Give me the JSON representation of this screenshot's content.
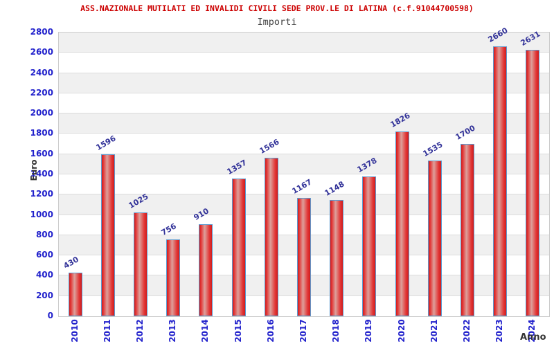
{
  "chart_data": {
    "type": "bar",
    "title": "ASS.NAZIONALE MUTILATI ED INVALIDI CIVILI SEDE PROV.LE DI LATINA (c.f.91044700598)",
    "subtitle": "Importi",
    "xlabel": "Anno",
    "ylabel": "Euro",
    "categories": [
      "2010",
      "2011",
      "2012",
      "2013",
      "2014",
      "2015",
      "2016",
      "2017",
      "2018",
      "2019",
      "2020",
      "2021",
      "2022",
      "2023",
      "2024"
    ],
    "values": [
      430,
      1596,
      1025,
      756,
      910,
      1357,
      1566,
      1167,
      1148,
      1378,
      1826,
      1535,
      1700,
      2660,
      2631
    ],
    "ylim": [
      0,
      2800
    ],
    "ytick_step": 200,
    "yticks": [
      0,
      200,
      400,
      600,
      800,
      1000,
      1200,
      1400,
      1600,
      1800,
      2000,
      2200,
      2400,
      2600,
      2800
    ],
    "grid": true,
    "legend_position": "none",
    "value_label_rotation_deg": -30,
    "x_tick_rotation_deg": -90
  },
  "colors": {
    "title": "#cc0000",
    "subtitle": "#444444",
    "axis_tick": "#2222cc",
    "value_label": "#333399",
    "axis_label": "#333333",
    "bar_border": "#5c9bd1",
    "bar_dark": "#cf1d1d",
    "bar_light": "#dda09b",
    "band": "#f0f0f0",
    "gridline": "#dcdcdc",
    "plot_border": "#cccccc"
  }
}
